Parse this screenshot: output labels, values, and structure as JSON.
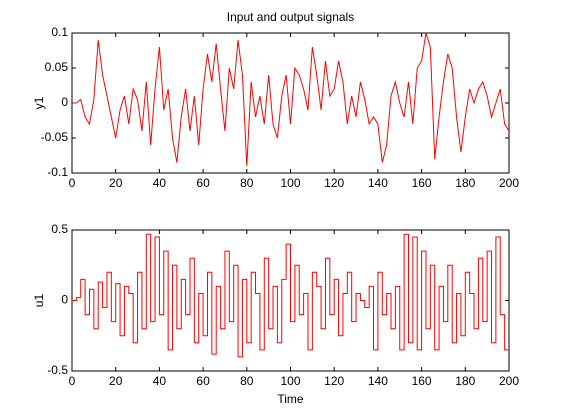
{
  "chart_data": [
    {
      "type": "line",
      "title": "Input and output signals",
      "ylabel": "y1",
      "color": "#ff0000",
      "x": [
        0,
        2,
        4,
        6,
        8,
        10,
        12,
        14,
        16,
        18,
        20,
        22,
        24,
        26,
        28,
        30,
        32,
        34,
        36,
        38,
        40,
        42,
        44,
        46,
        48,
        50,
        52,
        54,
        56,
        58,
        60,
        62,
        64,
        66,
        68,
        70,
        72,
        74,
        76,
        78,
        80,
        82,
        84,
        86,
        88,
        90,
        92,
        94,
        96,
        98,
        100,
        102,
        104,
        106,
        108,
        110,
        112,
        114,
        116,
        118,
        120,
        122,
        124,
        126,
        128,
        130,
        132,
        134,
        136,
        138,
        140,
        142,
        144,
        146,
        148,
        150,
        152,
        154,
        156,
        158,
        160,
        162,
        164,
        166,
        168,
        170,
        172,
        174,
        176,
        178,
        180,
        182,
        184,
        186,
        188,
        190,
        192,
        194,
        196,
        198,
        200
      ],
      "values": [
        0,
        0,
        0.005,
        -0.02,
        -0.03,
        0.005,
        0.09,
        0.04,
        0.01,
        -0.02,
        -0.05,
        -0.01,
        0.01,
        -0.03,
        0.02,
        0.005,
        -0.04,
        0.03,
        -0.06,
        0.02,
        0.08,
        -0.01,
        0.02,
        -0.05,
        -0.085,
        -0.02,
        0.02,
        -0.04,
        0.01,
        -0.06,
        0.02,
        0.07,
        0.03,
        0.085,
        0.02,
        -0.04,
        0.05,
        0.02,
        0.09,
        0.04,
        -0.09,
        0.03,
        -0.02,
        0.01,
        -0.03,
        0.04,
        -0.03,
        -0.05,
        0.01,
        0.04,
        -0.03,
        0.05,
        0.04,
        0.02,
        -0.01,
        0.08,
        0.04,
        -0.01,
        0.06,
        0.01,
        0.02,
        0.06,
        0.03,
        -0.03,
        0.01,
        -0.02,
        0.03,
        0.005,
        -0.03,
        -0.02,
        -0.03,
        -0.085,
        -0.06,
        0.01,
        0.03,
        0,
        -0.02,
        0.03,
        -0.03,
        0.05,
        0.06,
        0.1,
        0.08,
        -0.08,
        -0.02,
        0.03,
        0.07,
        0.05,
        -0.02,
        -0.07,
        -0.02,
        0.02,
        0,
        0.02,
        0.03,
        0.01,
        -0.02,
        0,
        0.02,
        -0.03,
        -0.04
      ],
      "xlim": [
        0,
        200
      ],
      "ylim": [
        -0.1,
        0.1
      ],
      "xticks": [
        0,
        20,
        40,
        60,
        80,
        100,
        120,
        140,
        160,
        180,
        200
      ],
      "yticks": [
        -0.1,
        -0.05,
        0,
        0.05,
        0.1
      ]
    },
    {
      "type": "stairs",
      "ylabel": "u1",
      "xlabel": "Time",
      "color": "#ff0000",
      "x": [
        0,
        2,
        4,
        6,
        8,
        10,
        12,
        14,
        16,
        18,
        20,
        22,
        24,
        26,
        28,
        30,
        32,
        34,
        36,
        38,
        40,
        42,
        44,
        46,
        48,
        50,
        52,
        54,
        56,
        58,
        60,
        62,
        64,
        66,
        68,
        70,
        72,
        74,
        76,
        78,
        80,
        82,
        84,
        86,
        88,
        90,
        92,
        94,
        96,
        98,
        100,
        102,
        104,
        106,
        108,
        110,
        112,
        114,
        116,
        118,
        120,
        122,
        124,
        126,
        128,
        130,
        132,
        134,
        136,
        138,
        140,
        142,
        144,
        146,
        148,
        150,
        152,
        154,
        156,
        158,
        160,
        162,
        164,
        166,
        168,
        170,
        172,
        174,
        176,
        178,
        180,
        182,
        184,
        186,
        188,
        190,
        192,
        194,
        196,
        198,
        200
      ],
      "values": [
        0,
        0.02,
        0.15,
        -0.1,
        0.08,
        -0.2,
        0.13,
        -0.05,
        0.2,
        -0.15,
        0.12,
        -0.25,
        0.1,
        0.05,
        -0.3,
        0.2,
        -0.2,
        0.47,
        -0.15,
        0.45,
        -0.1,
        0.35,
        -0.35,
        0.25,
        -0.2,
        0.15,
        -0.1,
        0.3,
        -0.3,
        0.05,
        -0.25,
        0.2,
        -0.38,
        0.1,
        -0.2,
        0.35,
        -0.15,
        0.25,
        -0.4,
        0.15,
        -0.3,
        0.2,
        0.05,
        -0.35,
        0.3,
        -0.2,
        0.1,
        -0.3,
        0.15,
        0.4,
        -0.15,
        0.25,
        -0.1,
        0.05,
        -0.35,
        0.2,
        0.1,
        -0.2,
        0.3,
        -0.1,
        0.15,
        -0.25,
        0.05,
        0.2,
        -0.15,
        0.05,
        0,
        -0.05,
        0.1,
        -0.35,
        0.2,
        -0.1,
        0.05,
        -0.2,
        0.1,
        -0.35,
        0.47,
        -0.3,
        0.45,
        -0.35,
        0.35,
        -0.2,
        0.25,
        -0.35,
        0.1,
        -0.15,
        0.25,
        -0.3,
        0.05,
        -0.25,
        0.2,
        0.05,
        -0.2,
        0.3,
        -0.15,
        0.35,
        -0.3,
        0.45,
        -0.1,
        -0.35,
        -0.35
      ],
      "xlim": [
        0,
        200
      ],
      "ylim": [
        -0.5,
        0.5
      ],
      "xticks": [
        0,
        20,
        40,
        60,
        80,
        100,
        120,
        140,
        160,
        180,
        200
      ],
      "yticks": [
        -0.5,
        0,
        0.5
      ]
    }
  ]
}
